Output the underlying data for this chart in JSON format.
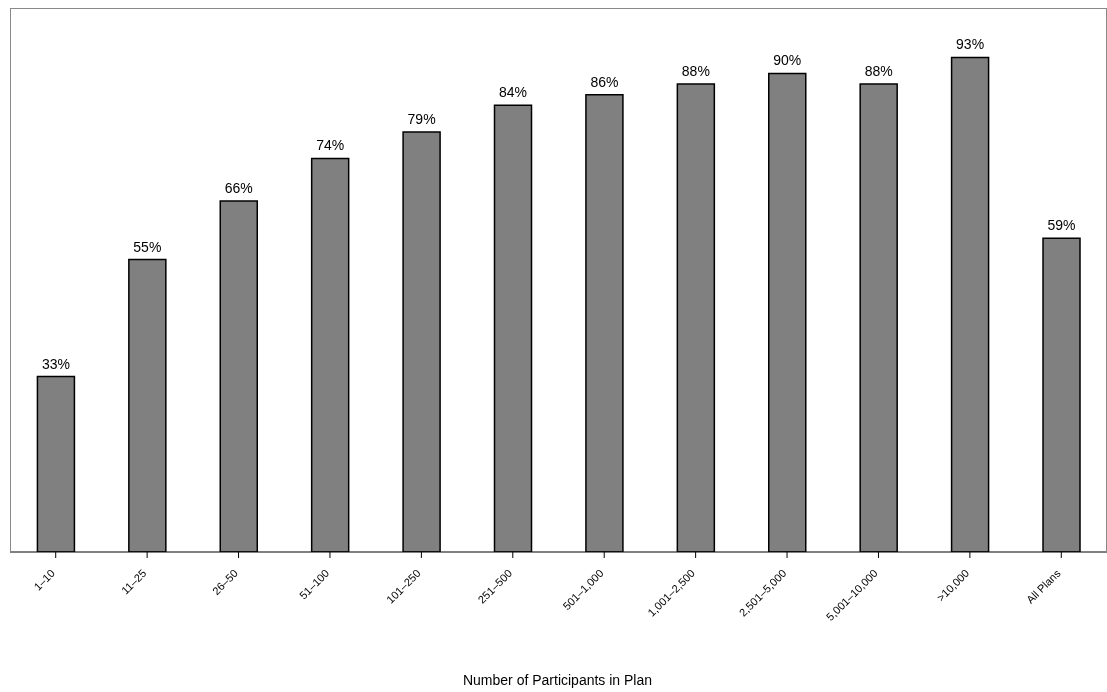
{
  "chart_data": {
    "type": "bar",
    "xlabel": "Number of Participants in Plan",
    "categories": [
      "1–10",
      "11–25",
      "26–50",
      "51–100",
      "101–250",
      "251–500",
      "501–1,000",
      "1,001–2,500",
      "2,501–5,000",
      "5,001–10,000",
      ">10,000",
      "All Plans"
    ],
    "values": [
      33,
      55,
      66,
      74,
      79,
      84,
      86,
      88,
      90,
      88,
      93,
      59
    ],
    "value_labels": [
      "33%",
      "55%",
      "66%",
      "74%",
      "79%",
      "84%",
      "86%",
      "88%",
      "90%",
      "88%",
      "93%",
      "59%"
    ],
    "color": "#808080"
  }
}
